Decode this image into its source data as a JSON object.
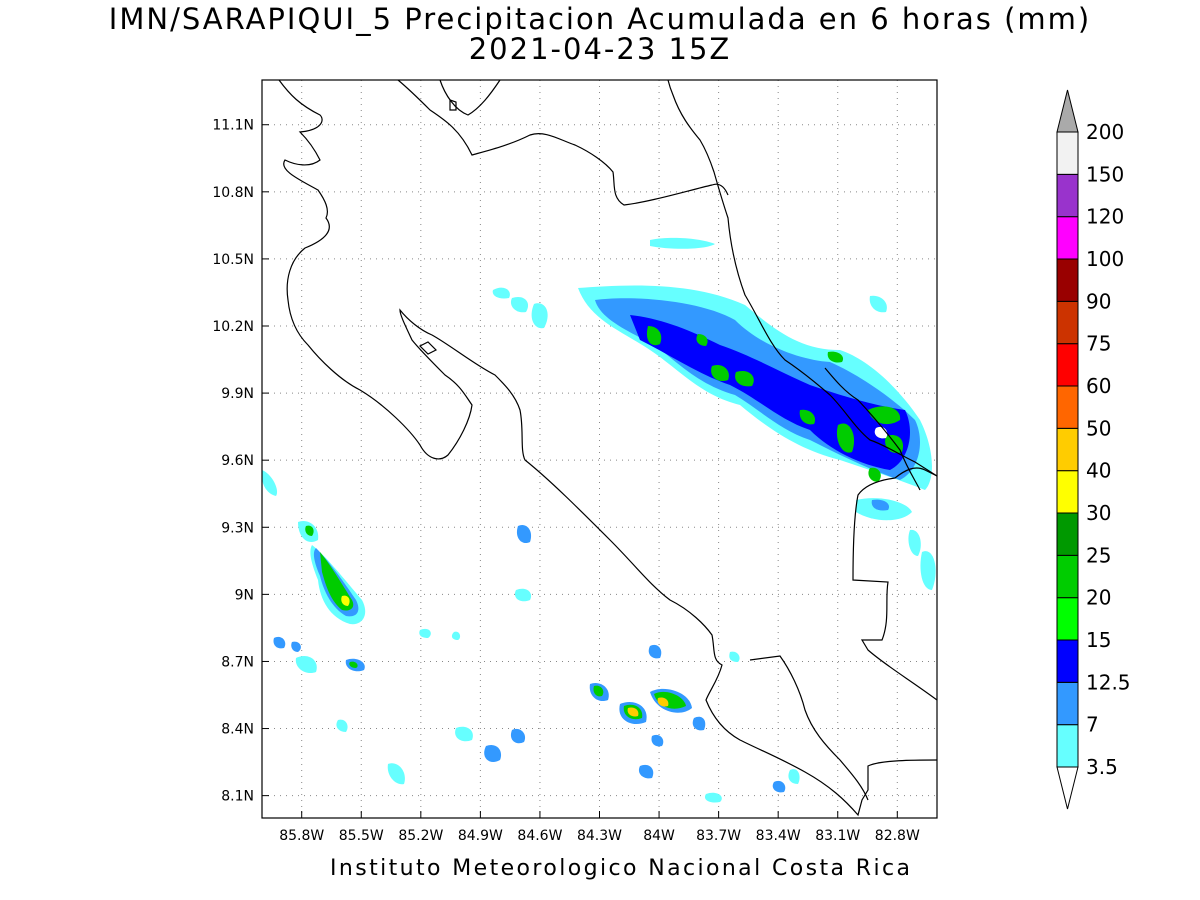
{
  "title_line1": "IMN/SARAPIQUI_5 Precipitacion Acumulada en 6 horas (mm)",
  "title_line2": "2021-04-23 15Z",
  "footer": "Instituto Meteorologico Nacional Costa Rica",
  "map": {
    "lon_range": [
      -86.0,
      -82.6
    ],
    "lat_range": [
      8.0,
      11.3
    ],
    "lon_ticks": [
      "85.8W",
      "85.5W",
      "85.2W",
      "84.9W",
      "84.6W",
      "84.3W",
      "84W",
      "83.7W",
      "83.4W",
      "83.1W",
      "82.8W"
    ],
    "lat_ticks": [
      "8.1N",
      "8.4N",
      "8.7N",
      "9N",
      "9.3N",
      "9.6N",
      "9.9N",
      "10.2N",
      "10.5N",
      "10.8N",
      "11.1N"
    ],
    "grid": true
  },
  "colorbar": {
    "labels": [
      "3.5",
      "7",
      "12.5",
      "15",
      "20",
      "25",
      "30",
      "40",
      "50",
      "60",
      "75",
      "90",
      "100",
      "120",
      "150",
      "200"
    ],
    "colors": [
      "#66ffff",
      "#3399ff",
      "#0000ff",
      "#00ff00",
      "#00cc00",
      "#009900",
      "#ffff00",
      "#ffcc00",
      "#ff6600",
      "#ff0000",
      "#cc3300",
      "#990000",
      "#ff00ff",
      "#9933cc",
      "#f2f2f2",
      "#aaaaaa"
    ]
  }
}
